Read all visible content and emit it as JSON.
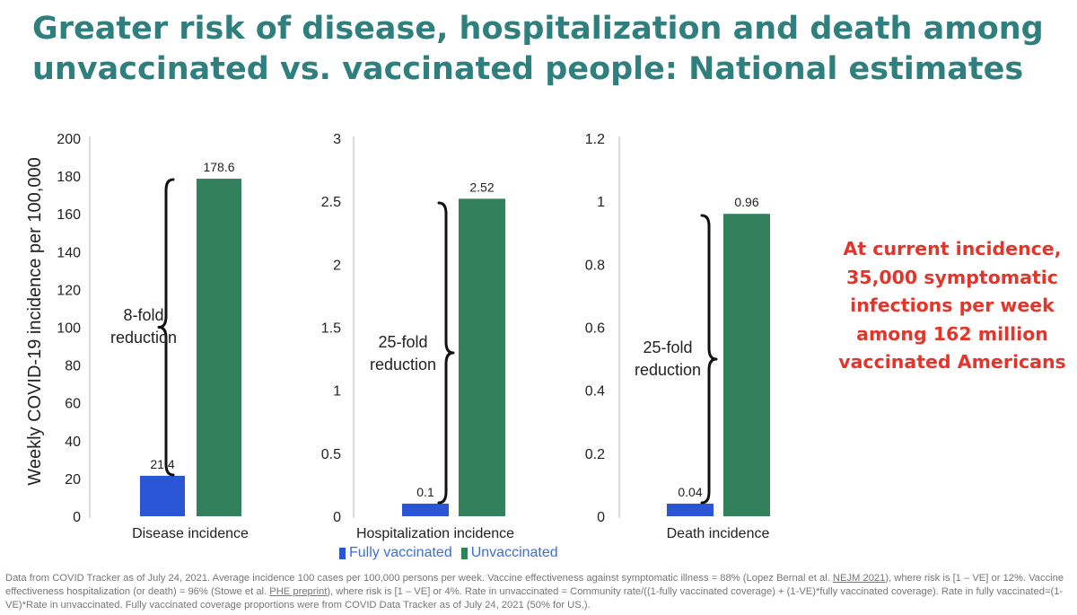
{
  "title": {
    "line1": "Greater risk of disease, hospitalization and death among",
    "line2": "unvaccinated vs. vaccinated people: National estimates"
  },
  "colors": {
    "title": "#2e7f7e",
    "vaccinated": "#2a56d6",
    "unvaccinated": "#33805c",
    "callout": "#e5352b",
    "axis_text": "#222222",
    "footnote": "#777777"
  },
  "chart_data": [
    {
      "type": "bar",
      "categories": [
        "Disease incidence"
      ],
      "series": [
        {
          "name": "Fully vaccinated",
          "values": [
            21.4
          ]
        },
        {
          "name": "Unvaccinated",
          "values": [
            178.6
          ]
        }
      ],
      "data_labels": [
        "21.4",
        "178.6"
      ],
      "ylim": [
        0,
        200
      ],
      "yticks": [
        0,
        20,
        40,
        60,
        80,
        100,
        120,
        140,
        160,
        180,
        200
      ],
      "ytick_labels": [
        "0",
        "20",
        "40",
        "60",
        "80",
        "100",
        "120",
        "140",
        "160",
        "180",
        "200"
      ],
      "ylabel": "Weekly COVID-19 incidence per 100,000",
      "xlabel": "Disease incidence",
      "annotation": [
        "8-fold",
        "reduction"
      ]
    },
    {
      "type": "bar",
      "categories": [
        "Hospitalization incidence"
      ],
      "series": [
        {
          "name": "Fully vaccinated",
          "values": [
            0.1
          ]
        },
        {
          "name": "Unvaccinated",
          "values": [
            2.52
          ]
        }
      ],
      "data_labels": [
        "0.1",
        "2.52"
      ],
      "ylim": [
        0,
        3
      ],
      "yticks": [
        0,
        0.5,
        1,
        1.5,
        2,
        2.5,
        3
      ],
      "ytick_labels": [
        "0",
        "0.5",
        "1",
        "1.5",
        "2",
        "2.5",
        "3"
      ],
      "xlabel": "Hospitalization incidence",
      "annotation": [
        "25-fold",
        "reduction"
      ]
    },
    {
      "type": "bar",
      "categories": [
        "Death incidence"
      ],
      "series": [
        {
          "name": "Fully vaccinated",
          "values": [
            0.04
          ]
        },
        {
          "name": "Unvaccinated",
          "values": [
            0.96
          ]
        }
      ],
      "data_labels": [
        "0.04",
        "0.96"
      ],
      "ylim": [
        0,
        1.2
      ],
      "yticks": [
        0,
        0.2,
        0.4,
        0.6,
        0.8,
        1,
        1.2
      ],
      "ytick_labels": [
        "0",
        "0.2",
        "0.4",
        "0.6",
        "0.8",
        "1",
        "1.2"
      ],
      "xlabel": "Death incidence",
      "annotation": [
        "25-fold",
        "reduction"
      ]
    }
  ],
  "legend": {
    "vaccinated": "Fully vaccinated",
    "unvaccinated": "Unvaccinated"
  },
  "callout": {
    "line1": "At current incidence,",
    "line2": "35,000 symptomatic",
    "line3": "infections per week",
    "line4": "among 162 million",
    "line5": "vaccinated Americans"
  },
  "footnote": {
    "p1": "Data from COVID Tracker as of July 24, 2021. Average incidence 100 cases per 100,000 persons per week. Vaccine effectiveness against symptomatic illness = 88% (Lopez Bernal et al. ",
    "nejm": "NEJM 2021",
    "p2": "), where risk is [1 – VE] or 12%. Vaccine effectiveness hospitalization (or death) = 96% (Stowe et al. ",
    "phe": "PHE preprint",
    "p3": "), where risk is [1 – VE] or 4%.  Rate in unvaccinated = Community rate/((1-fully vaccinated coverage) + (1-VE)*fully vaccinated coverage). Rate in fully vaccinated=(1-VE)*Rate in unvaccinated. Fully vaccinated coverage proportions were from COVID Data Tracker as of July 24, 2021 (50% for US,)."
  }
}
